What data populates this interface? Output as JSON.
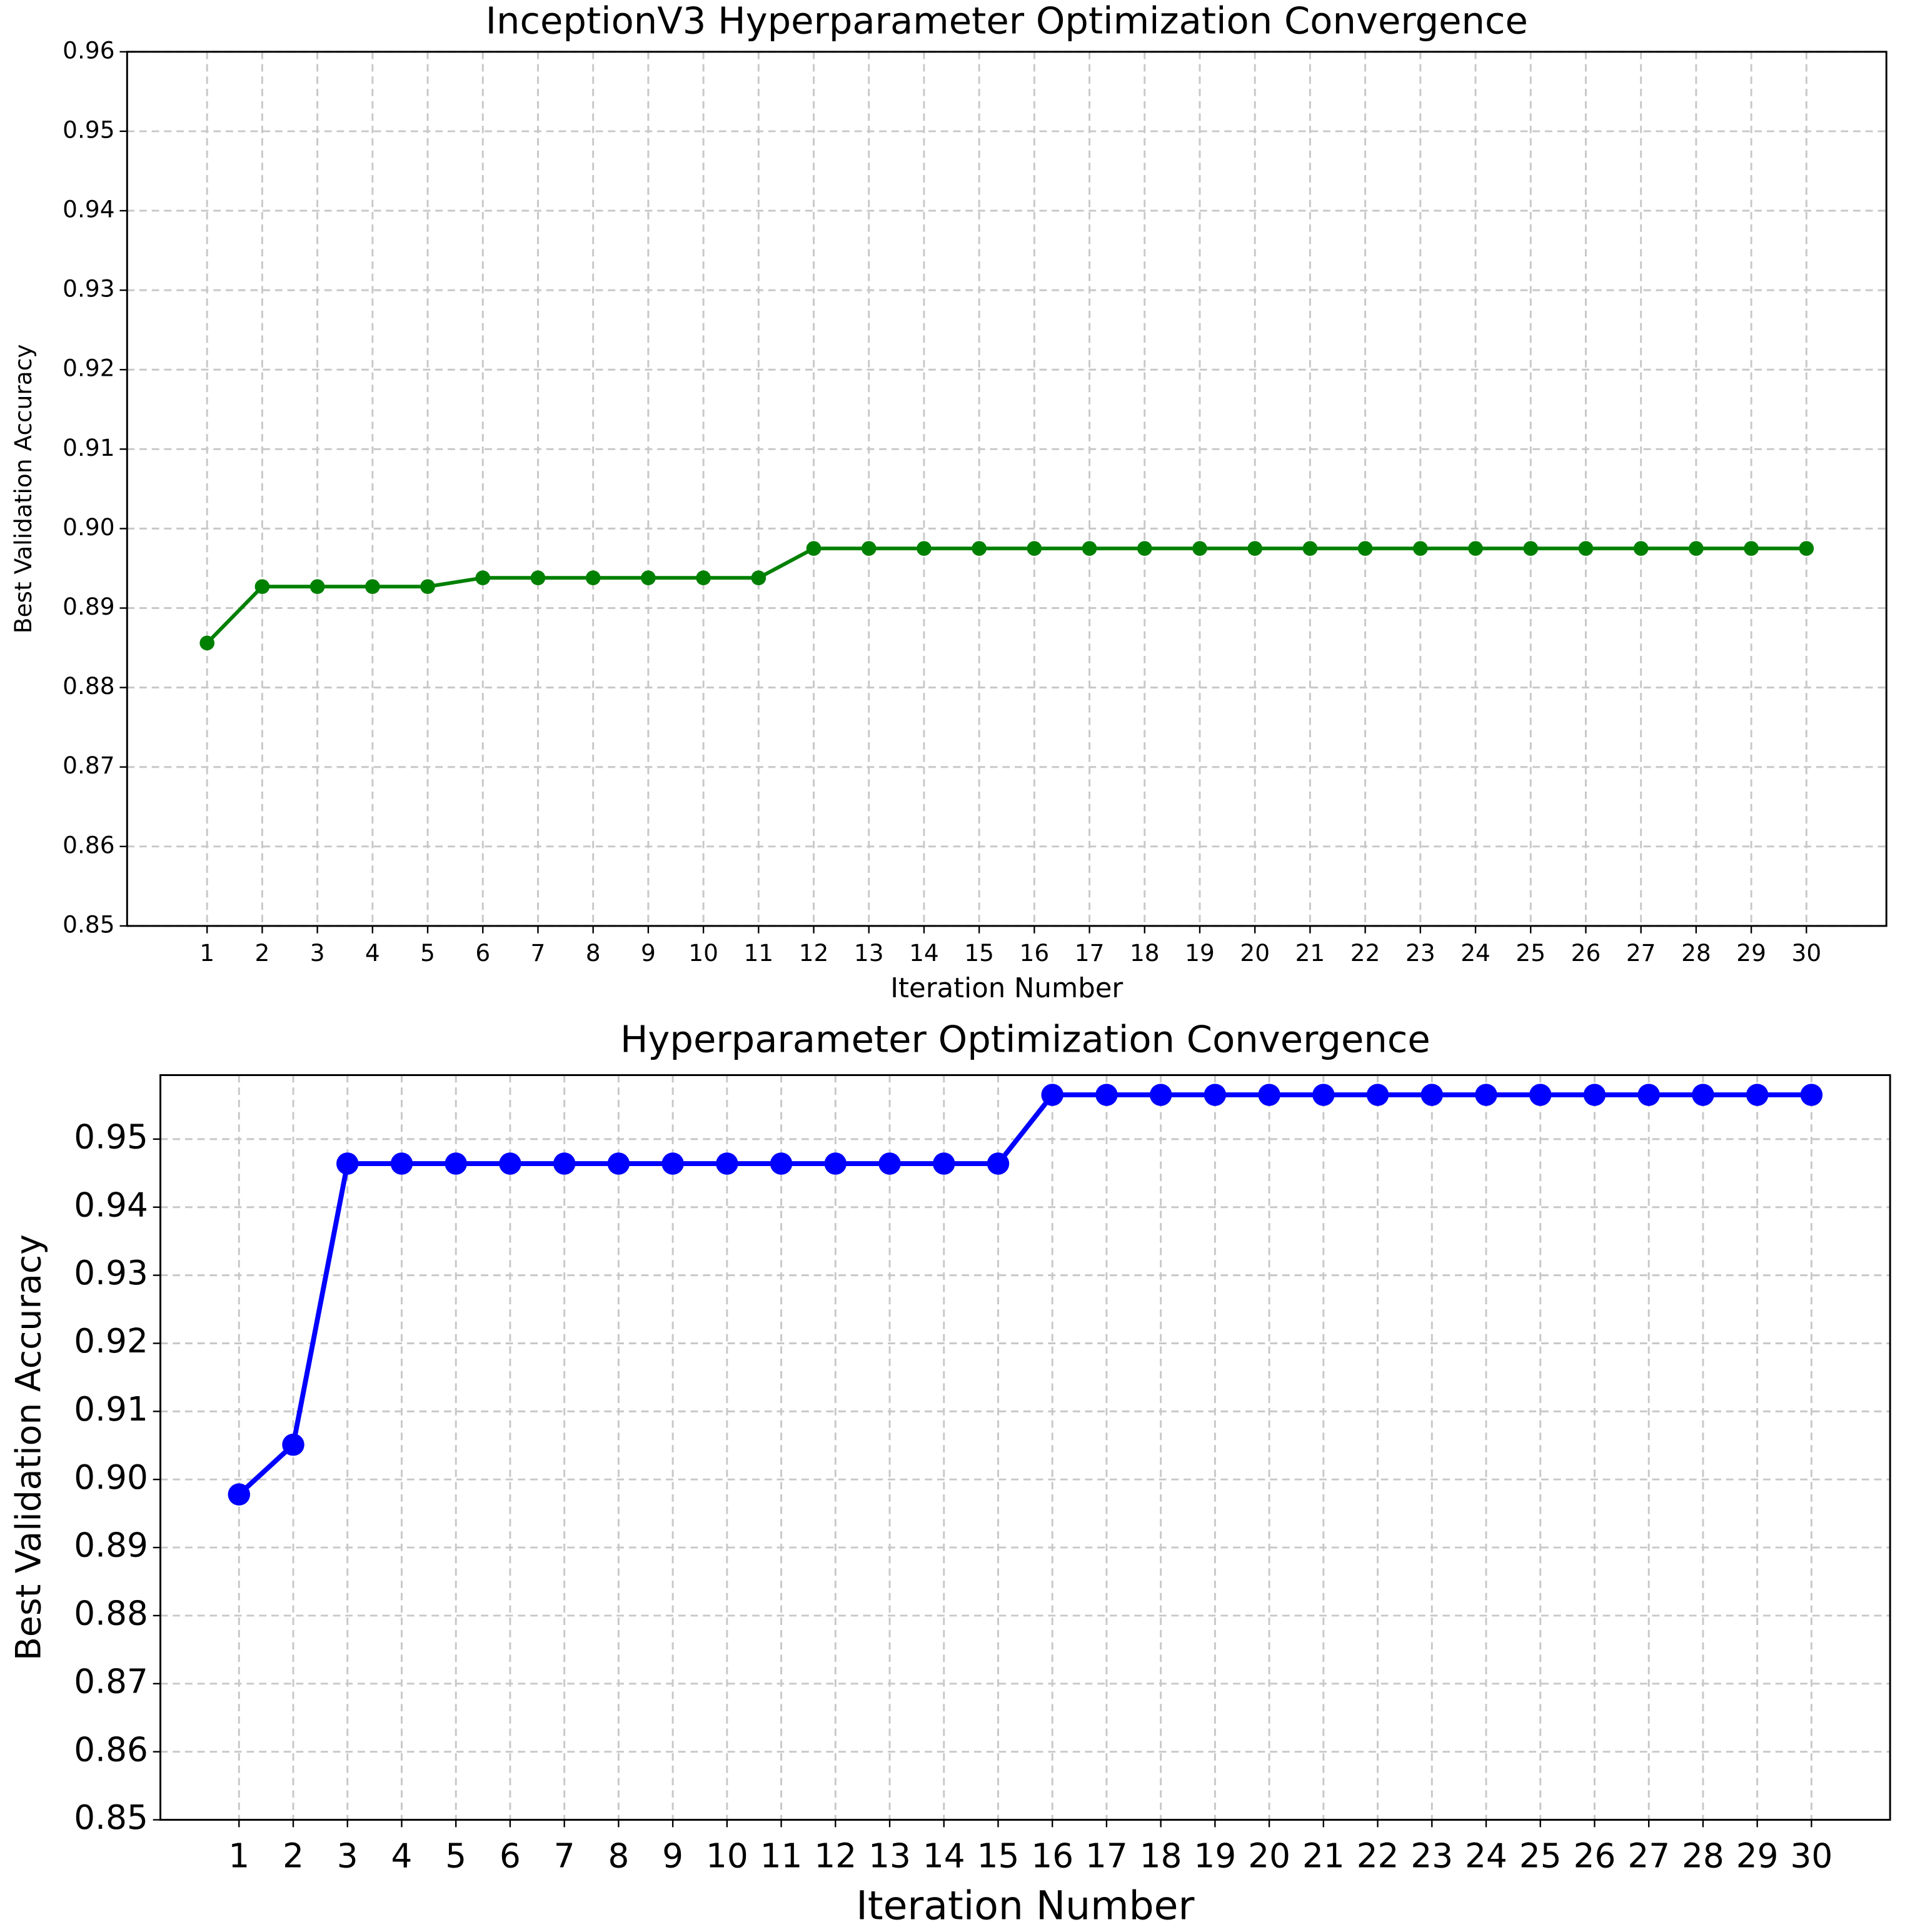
{
  "chart_data": [
    {
      "type": "line",
      "title": "InceptionV3 Hyperparameter Optimization Convergence",
      "x_label": "Iteration Number",
      "y_label": "Best Validation Accuracy",
      "x": [
        1,
        2,
        3,
        4,
        5,
        6,
        7,
        8,
        9,
        10,
        11,
        12,
        13,
        14,
        15,
        16,
        17,
        18,
        19,
        20,
        21,
        22,
        23,
        24,
        25,
        26,
        27,
        28,
        29,
        30
      ],
      "values": [
        0.8856,
        0.8927,
        0.8927,
        0.8927,
        0.8927,
        0.8938,
        0.8938,
        0.8938,
        0.8938,
        0.8938,
        0.8938,
        0.8975,
        0.8975,
        0.8975,
        0.8975,
        0.8975,
        0.8975,
        0.8975,
        0.8975,
        0.8975,
        0.8975,
        0.8975,
        0.8975,
        0.8975,
        0.8975,
        0.8975,
        0.8975,
        0.8975,
        0.8975,
        0.8975
      ],
      "color": "#008000",
      "xlim": [
        -0.45,
        31.45
      ],
      "xticks": [
        1,
        2,
        3,
        4,
        5,
        6,
        7,
        8,
        9,
        10,
        11,
        12,
        13,
        14,
        15,
        16,
        17,
        18,
        19,
        20,
        21,
        22,
        23,
        24,
        25,
        26,
        27,
        28,
        29,
        30
      ],
      "ylim": [
        0.85,
        0.96
      ],
      "yticks": [
        0.85,
        0.86,
        0.87,
        0.88,
        0.89,
        {
          "value": 0.9,
          "label": "0.90"
        },
        0.91,
        0.92,
        0.93,
        0.94,
        0.95,
        0.96
      ],
      "grid": true
    },
    {
      "type": "line",
      "title": "Hyperparameter Optimization Convergence",
      "x_label": "Iteration Number",
      "y_label": "Best Validation Accuracy",
      "x": [
        1,
        2,
        3,
        4,
        5,
        6,
        7,
        8,
        9,
        10,
        11,
        12,
        13,
        14,
        15,
        16,
        17,
        18,
        19,
        20,
        21,
        22,
        23,
        24,
        25,
        26,
        27,
        28,
        29,
        30
      ],
      "values": [
        0.8978,
        0.9051,
        0.9464,
        0.9464,
        0.9464,
        0.9464,
        0.9464,
        0.9464,
        0.9464,
        0.9464,
        0.9464,
        0.9464,
        0.9464,
        0.9464,
        0.9464,
        0.9565,
        0.9565,
        0.9565,
        0.9565,
        0.9565,
        0.9565,
        0.9565,
        0.9565,
        0.9565,
        0.9565,
        0.9565,
        0.9565,
        0.9565,
        0.9565,
        0.9565
      ],
      "color": "#0000ff",
      "xlim": [
        -0.45,
        31.45
      ],
      "xticks": [
        1,
        2,
        3,
        4,
        5,
        6,
        7,
        8,
        9,
        10,
        11,
        12,
        13,
        14,
        15,
        16,
        17,
        18,
        19,
        20,
        21,
        22,
        23,
        24,
        25,
        26,
        27,
        28,
        29,
        30
      ],
      "ylim": [
        0.85,
        0.9594
      ],
      "yticks": [
        0.85,
        0.86,
        0.87,
        0.88,
        0.89,
        {
          "value": 0.9,
          "label": "0.90"
        },
        0.91,
        0.92,
        0.93,
        0.94,
        0.95
      ],
      "grid": true
    }
  ]
}
